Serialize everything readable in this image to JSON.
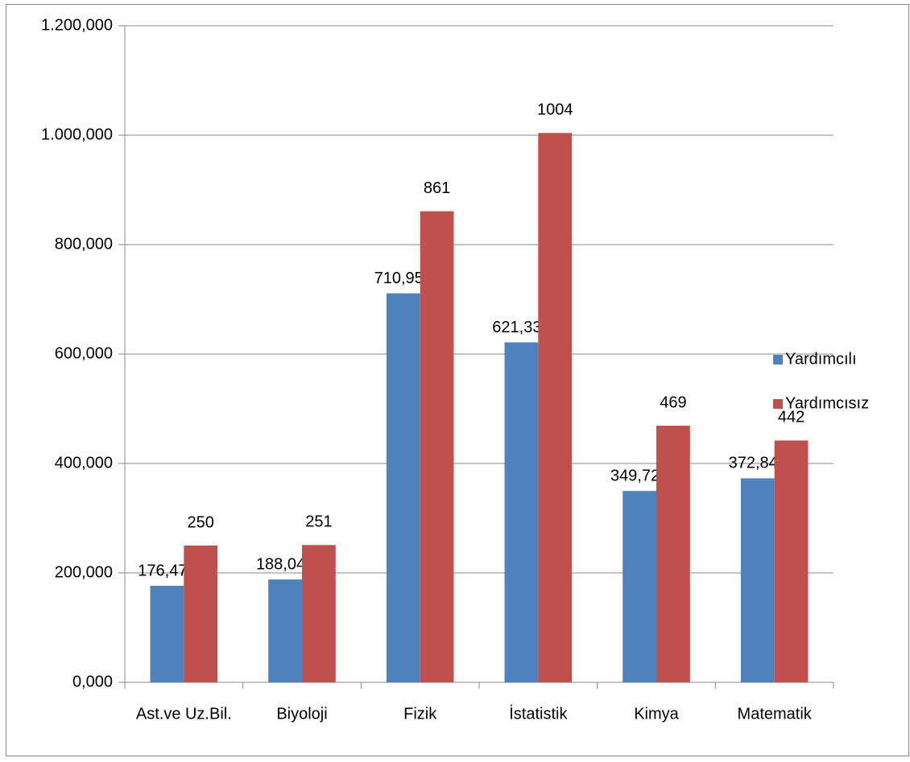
{
  "chart_data": {
    "type": "bar",
    "categories": [
      "Ast.ve Uz.Bil.",
      "Biyoloji",
      "Fizik",
      "İstatistik",
      "Kimya",
      "Matematik"
    ],
    "series": [
      {
        "name": "Yardımcılı",
        "color": "#4f81bd",
        "values": [
          176.47,
          188.045,
          710.956,
          621.333,
          349.725,
          372.842
        ],
        "value_labels": [
          "176,470",
          "188,045",
          "710,956",
          "621,333",
          "349,725",
          "372,842"
        ]
      },
      {
        "name": "Yardımcısız",
        "color": "#c0504d",
        "values": [
          250,
          251,
          861,
          1004,
          469,
          442
        ]
      }
    ],
    "ylim": [
      0,
      1200
    ],
    "yticks": [
      {
        "value": 0,
        "label": "0,000"
      },
      {
        "value": 200,
        "label": "200,000"
      },
      {
        "value": 400,
        "label": "400,000"
      },
      {
        "value": 600,
        "label": "600,000"
      },
      {
        "value": 800,
        "label": "800,000"
      },
      {
        "value": 1000,
        "label": "1.000,000"
      },
      {
        "value": 1200,
        "label": "1.200,000"
      }
    ],
    "grid": true,
    "legend": "right"
  }
}
